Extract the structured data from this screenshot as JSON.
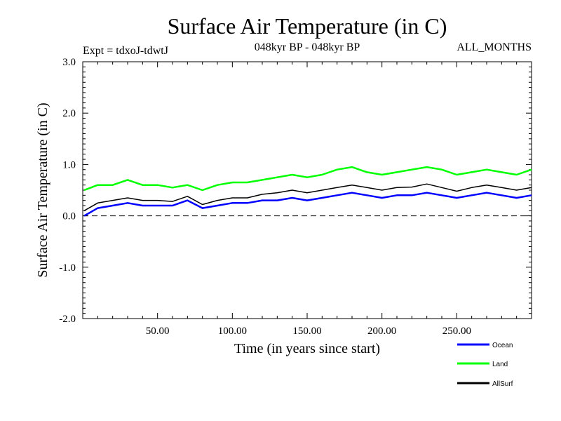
{
  "chart_data": {
    "type": "line",
    "title": "Surface Air Temperature (in C)",
    "subtitle": "048kyr BP - 048kyr BP",
    "experiment_label": "Expt = tdxoJ-tdwtJ",
    "season_label": "ALL_MONTHS",
    "xlabel": "Time (in years since start)",
    "ylabel": "Surface Air Temperature (in C)",
    "xlim": [
      0,
      300
    ],
    "ylim": [
      -2.0,
      3.0
    ],
    "x_ticks": [
      50,
      100,
      150,
      200,
      250
    ],
    "x_tick_labels": [
      "50.00",
      "100.00",
      "150.00",
      "200.00",
      "250.00"
    ],
    "y_ticks": [
      -2.0,
      -1.0,
      0.0,
      1.0,
      2.0,
      3.0
    ],
    "y_tick_labels": [
      "-2.0",
      "-1.0",
      "0.0",
      "1.0",
      "2.0",
      "3.0"
    ],
    "reference_line": 0.0,
    "grid": false,
    "legend_position": "bottom-right, outside plot",
    "series_resolution": "annual means, estimated trend; original is monthly-noisy",
    "x": [
      1,
      10,
      20,
      30,
      40,
      50,
      60,
      70,
      80,
      90,
      100,
      110,
      120,
      130,
      140,
      150,
      160,
      170,
      180,
      190,
      200,
      210,
      220,
      230,
      240,
      250,
      260,
      270,
      280,
      290,
      300
    ],
    "series": [
      {
        "name": "Ocean",
        "color": "#0000ff",
        "values": [
          0.0,
          0.15,
          0.2,
          0.25,
          0.2,
          0.2,
          0.2,
          0.3,
          0.15,
          0.2,
          0.25,
          0.25,
          0.3,
          0.3,
          0.35,
          0.3,
          0.35,
          0.4,
          0.45,
          0.4,
          0.35,
          0.4,
          0.4,
          0.45,
          0.4,
          0.35,
          0.4,
          0.45,
          0.4,
          0.35,
          0.4
        ]
      },
      {
        "name": "Land",
        "color": "#00ff00",
        "values": [
          0.5,
          0.6,
          0.6,
          0.7,
          0.6,
          0.6,
          0.55,
          0.6,
          0.5,
          0.6,
          0.65,
          0.65,
          0.7,
          0.75,
          0.8,
          0.75,
          0.8,
          0.9,
          0.95,
          0.85,
          0.8,
          0.85,
          0.9,
          0.95,
          0.9,
          0.8,
          0.85,
          0.9,
          0.85,
          0.8,
          0.9
        ]
      },
      {
        "name": "AllSurf",
        "color": "#000000",
        "values": [
          0.1,
          0.25,
          0.3,
          0.35,
          0.3,
          0.3,
          0.28,
          0.38,
          0.22,
          0.3,
          0.35,
          0.35,
          0.42,
          0.45,
          0.5,
          0.45,
          0.5,
          0.55,
          0.6,
          0.55,
          0.5,
          0.55,
          0.56,
          0.62,
          0.55,
          0.48,
          0.55,
          0.6,
          0.55,
          0.5,
          0.55
        ]
      }
    ]
  }
}
